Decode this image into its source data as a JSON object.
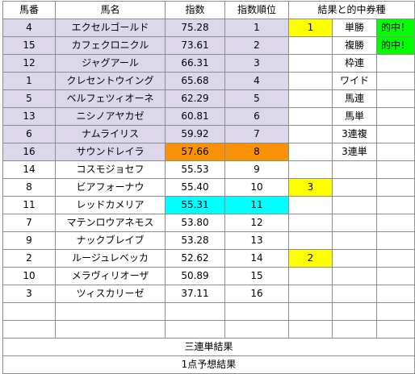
{
  "headers": [
    "馬番",
    "馬名",
    "指数",
    "指数順位",
    "結果と的中券種"
  ],
  "rows": [
    {
      "no": "4",
      "name": "エクセルゴールド",
      "score": "75.28",
      "rank": "1",
      "result_value": "1",
      "ticket": "単勝",
      "hit": "的中！"
    },
    {
      "no": "15",
      "name": "カフェクロニクル",
      "score": "73.61",
      "rank": "2",
      "result_value": "",
      "ticket": "複勝",
      "hit": "的中！"
    },
    {
      "no": "12",
      "name": "ジャグアール",
      "score": "66.31",
      "rank": "3",
      "result_value": "",
      "ticket": "枠連",
      "hit": ""
    },
    {
      "no": "1",
      "name": "クレセントウイング",
      "score": "65.68",
      "rank": "4",
      "result_value": "",
      "ticket": "ワイド",
      "hit": ""
    },
    {
      "no": "5",
      "name": "ベルフェツィオーネ",
      "score": "62.29",
      "rank": "5",
      "result_value": "",
      "ticket": "馬連",
      "hit": ""
    },
    {
      "no": "13",
      "name": "ニシノアヤカゼ",
      "score": "60.81",
      "rank": "6",
      "result_value": "",
      "ticket": "馬単",
      "hit": ""
    },
    {
      "no": "6",
      "name": "ナムライリス",
      "score": "59.92",
      "rank": "7",
      "result_value": "",
      "ticket": "3連複",
      "hit": ""
    },
    {
      "no": "16",
      "name": "サウンドレイラ",
      "score": "57.66",
      "rank": "8",
      "result_value": "",
      "ticket": "3連単",
      "hit": ""
    },
    {
      "no": "14",
      "name": "コスモジョセフ",
      "score": "55.53",
      "rank": "9",
      "result_value": "",
      "ticket": "",
      "hit": ""
    },
    {
      "no": "8",
      "name": "ビアフォーナウ",
      "score": "55.40",
      "rank": "10",
      "result_value": "3",
      "ticket": "",
      "hit": ""
    },
    {
      "no": "11",
      "name": "レッドカメリア",
      "score": "55.31",
      "rank": "11",
      "result_value": "",
      "ticket": "",
      "hit": ""
    },
    {
      "no": "7",
      "name": "マテンロウアネモス",
      "score": "53.80",
      "rank": "12",
      "result_value": "",
      "ticket": "",
      "hit": ""
    },
    {
      "no": "9",
      "name": "ナックブレイブ",
      "score": "53.28",
      "rank": "13",
      "result_value": "",
      "ticket": "",
      "hit": ""
    },
    {
      "no": "2",
      "name": "ルージュレベッカ",
      "score": "52.62",
      "rank": "14",
      "result_value": "2",
      "ticket": "",
      "hit": ""
    },
    {
      "no": "10",
      "name": "メラヴィリオーザ",
      "score": "50.89",
      "rank": "15",
      "result_value": "",
      "ticket": "",
      "hit": ""
    },
    {
      "no": "3",
      "name": "ツィスカリーゼ",
      "score": "37.11",
      "rank": "16",
      "result_value": "",
      "ticket": "",
      "hit": ""
    },
    {
      "no": "",
      "name": "",
      "score": "",
      "rank": "",
      "result_value": "",
      "ticket": "",
      "hit": ""
    },
    {
      "no": "",
      "name": "",
      "score": "",
      "rank": "",
      "result_value": "",
      "ticket": "",
      "hit": ""
    }
  ],
  "footer": {
    "trifecta_result": "三連単結果",
    "one_point_prediction": "1点予想結果"
  },
  "colors": {
    "highlight_row": "#dcd7eb",
    "orange": "#fa9208",
    "cyan": "#00ffff",
    "yellow": "#ffff00",
    "green": "#00ff00"
  }
}
